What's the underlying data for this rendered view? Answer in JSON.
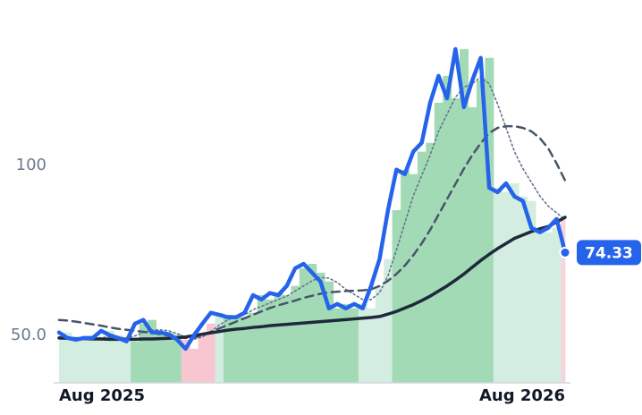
{
  "chart_data": {
    "type": "line",
    "categories": [
      "Aug 2025",
      null,
      null,
      null,
      null,
      null,
      null,
      null,
      null,
      null,
      null,
      null,
      null,
      null,
      null,
      null,
      null,
      null,
      null,
      null,
      null,
      null,
      null,
      null,
      null,
      null,
      null,
      null,
      null,
      null,
      null,
      null,
      null,
      null,
      null,
      null,
      null,
      null,
      null,
      null,
      null,
      null,
      null,
      null,
      null,
      null,
      null,
      null,
      null,
      null,
      null,
      null,
      null,
      null,
      null,
      null,
      null,
      null,
      null,
      null,
      "Aug 2026"
    ],
    "series": [
      {
        "color": "#2563eb",
        "width": 4.5,
        "dash": "solid",
        "values": [
          50.8,
          49.2,
          48.7,
          49.2,
          49.2,
          51.3,
          50,
          49.2,
          48.2,
          53.4,
          54.5,
          50.8,
          50.8,
          50.3,
          48.7,
          46,
          50,
          53.4,
          56.6,
          56,
          55.3,
          55.3,
          56.6,
          61.8,
          60.5,
          62.4,
          61.8,
          64.5,
          69.7,
          71,
          68.4,
          65.8,
          57.9,
          59.2,
          57.9,
          59.2,
          57.9,
          64.5,
          72.4,
          86.8,
          98.7,
          97.4,
          104,
          106.6,
          118.4,
          126.3,
          119.7,
          134.2,
          117.1,
          125,
          131.6,
          93.4,
          92.1,
          94.7,
          90.8,
          89.5,
          81.6,
          80.3,
          81.6,
          84.2,
          74.33
        ]
      },
      {
        "color": "#1e293b",
        "width": 3.5,
        "dash": "solid",
        "values": [
          49.2,
          49.1,
          49,
          49,
          48.9,
          48.9,
          48.8,
          48.8,
          48.8,
          48.8,
          48.9,
          48.9,
          49,
          49.1,
          49.3,
          49.5,
          49.9,
          50.3,
          50.7,
          51.1,
          51.5,
          51.8,
          52,
          52.3,
          52.5,
          52.8,
          53,
          53.2,
          53.4,
          53.6,
          53.8,
          54,
          54.2,
          54.4,
          54.6,
          54.8,
          55,
          55.2,
          55.5,
          56.2,
          57,
          58,
          59,
          60.2,
          61.5,
          63,
          64.5,
          66.2,
          68,
          70,
          72,
          73.8,
          75.5,
          77,
          78.5,
          79.5,
          80.5,
          81.3,
          82,
          83.3,
          84.7
        ]
      },
      {
        "color": "#475569",
        "width": 2.5,
        "dash": "dashed",
        "values": [
          54.5,
          54.3,
          54,
          53.6,
          53.2,
          52.8,
          52.3,
          51.9,
          51.6,
          51.3,
          51,
          50.7,
          50.3,
          49.9,
          49.5,
          49.2,
          49.3,
          50,
          51,
          52,
          53,
          54,
          55,
          56,
          57,
          58,
          58.8,
          59.5,
          60.2,
          61,
          61.6,
          62.2,
          62.6,
          62.8,
          63,
          63.1,
          63.2,
          63.5,
          64.5,
          66,
          68,
          70.5,
          73.5,
          77,
          81,
          85.5,
          90,
          94.5,
          99,
          103,
          106.5,
          109.5,
          111,
          111.5,
          111.5,
          111,
          110,
          108,
          105,
          100.5,
          95.5
        ]
      },
      {
        "color": "#64748b",
        "width": 1.6,
        "dash": "dotted",
        "values": [
          49.5,
          49.4,
          49.2,
          49.1,
          49,
          49.3,
          49.5,
          49.4,
          49.2,
          49.8,
          50.8,
          51.5,
          51.6,
          51.3,
          50.5,
          49.4,
          48.8,
          49.5,
          51,
          53,
          54.5,
          55.5,
          56,
          57.5,
          58.5,
          59.5,
          60.5,
          61.5,
          63,
          64.5,
          66,
          67,
          66.8,
          65.5,
          63.5,
          62,
          60.5,
          60.5,
          62.5,
          67.5,
          75,
          83,
          91,
          97,
          103,
          110,
          115,
          120,
          123,
          124,
          126,
          124,
          118,
          111,
          104,
          99,
          95,
          91,
          88,
          86,
          84
        ]
      }
    ],
    "bars": {
      "values": [
        48.8,
        50.8,
        49.2,
        48.7,
        49.2,
        49.2,
        51.3,
        50,
        49.2,
        48.2,
        53.4,
        54.5,
        50.8,
        50.8,
        50.3,
        48.7,
        46,
        50,
        53.4,
        56.6,
        56,
        55.3,
        55.3,
        56.6,
        61.8,
        60.5,
        62.4,
        61.8,
        64.5,
        69.7,
        71,
        68.4,
        65.8,
        57.9,
        59.2,
        57.9,
        59.2,
        57.9,
        64.5,
        72.4,
        86.8,
        98.7,
        97.4,
        104,
        106.6,
        118.4,
        126.3,
        119.7,
        134.2,
        117.1,
        125,
        131.6,
        93.4,
        92.1,
        94.7,
        90.8,
        89.5,
        81.6,
        80.3,
        81.6,
        84.2
      ],
      "colors": [
        "#d3ede0",
        "#d3ede0",
        "#d3ede0",
        "#d3ede0",
        "#d3ede0",
        "#d3ede0",
        "#d3ede0",
        "#d3ede0",
        "#d3ede0",
        "#a3dab6",
        "#a3dab6",
        "#a3dab6",
        "#a3dab6",
        "#a3dab6",
        "#a3dab6",
        "#f8c6d0",
        "#f8c6d0",
        "#f8c6d0",
        "#f8c6d0",
        "#d3ede0",
        "#a3dab6",
        "#a3dab6",
        "#a3dab6",
        "#a3dab6",
        "#a3dab6",
        "#a3dab6",
        "#a3dab6",
        "#a3dab6",
        "#a3dab6",
        "#a3dab6",
        "#a3dab6",
        "#a3dab6",
        "#a3dab6",
        "#a3dab6",
        "#a3dab6",
        "#a3dab6",
        "#d3ede0",
        "#d3ede0",
        "#d3ede0",
        "#d3ede0",
        "#a3dab6",
        "#a3dab6",
        "#a3dab6",
        "#a3dab6",
        "#a3dab6",
        "#a3dab6",
        "#a3dab6",
        "#a3dab6",
        "#a3dab6",
        "#a3dab6",
        "#a3dab6",
        "#a3dab6",
        "#d3ede0",
        "#d3ede0",
        "#d3ede0",
        "#d3ede0",
        "#d3ede0",
        "#d3ede0",
        "#d3ede0",
        "#d3ede0",
        "#f8d5dc"
      ]
    },
    "ylim": [
      36,
      148
    ],
    "yticks": [
      {
        "value": 50,
        "label": "50.0"
      },
      100
    ]
  }
}
